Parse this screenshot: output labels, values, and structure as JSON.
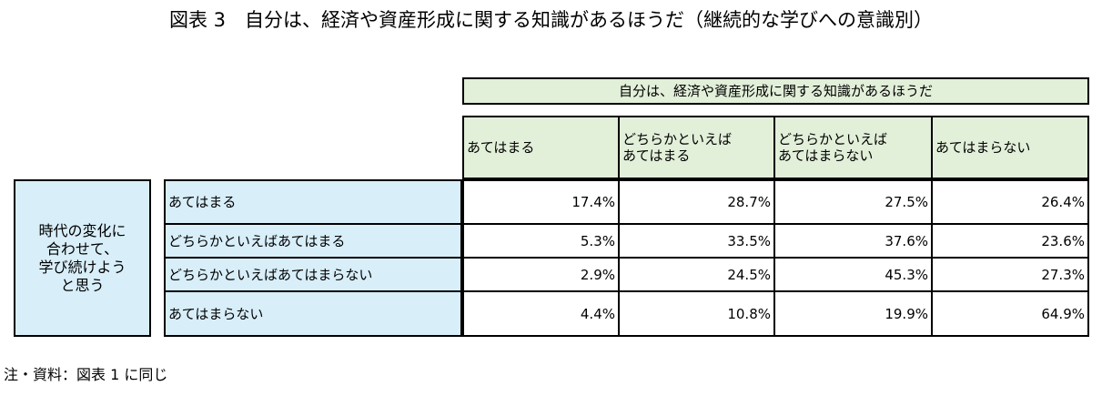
{
  "title": "図表 3　自分は、経済や資産形成に関する知識があるほうだ（継続的な学びへの意識別）",
  "note": "注・資料：図表 1 に同じ",
  "colors": {
    "header_fill": "#e2efd9",
    "row_label_fill": "#d8eef9",
    "border": "#000000"
  },
  "chart_data": {
    "type": "table",
    "column_group_label": "自分は、経済や資産形成に関する知識があるほうだ",
    "row_group_label": "時代の変化に合わせて、学び続けようと思う",
    "columns": [
      "あてはまる",
      "どちらかといえばあてはまる",
      "どちらかといえばあてはまらない",
      "あてはまらない"
    ],
    "column_display": [
      "あてはまる",
      "どちらかといえば\nあてはまる",
      "どちらかといえば\nあてはまらない",
      "あてはまらない"
    ],
    "rows": [
      "あてはまる",
      "どちらかといえばあてはまる",
      "どちらかといえばあてはまらない",
      "あてはまらない"
    ],
    "values": [
      [
        "17.4%",
        "28.7%",
        "27.5%",
        "26.4%"
      ],
      [
        "5.3%",
        "33.5%",
        "37.6%",
        "23.6%"
      ],
      [
        "2.9%",
        "24.5%",
        "45.3%",
        "27.3%"
      ],
      [
        "4.4%",
        "10.8%",
        "19.9%",
        "64.9%"
      ]
    ],
    "row_group_display": "時代の変化に\n合わせて、\n学び続けよう\nと思う"
  }
}
